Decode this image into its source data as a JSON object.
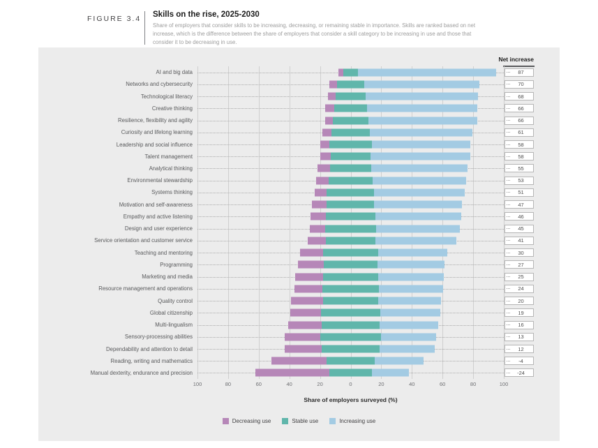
{
  "figure": {
    "label": "FIGURE 3.4",
    "title": "Skills on the rise, 2025-2030",
    "description": "Share of employers that consider skills to be increasing, decreasing, or remaining stable in importance. Skills are ranked based on net increase, which is the difference between the share of employers that consider a skill category to be increasing in use and those that consider it to be decreasing in use."
  },
  "net_increase_label": "Net increase",
  "axis": {
    "title": "Share of employers surveyed (%)",
    "tick_labels": [
      "100",
      "80",
      "60",
      "40",
      "20",
      "0",
      "20",
      "40",
      "60",
      "80",
      "100"
    ],
    "max_each_side": 100,
    "grid": true
  },
  "colors": {
    "decreasing": "#b687b8",
    "stable": "#60b6ab",
    "increasing": "#a3cbe3",
    "panel_background": "#ececec",
    "gridline": "#cfcfcf"
  },
  "legend": [
    {
      "label": "Decreasing use",
      "color": "#b687b8"
    },
    {
      "label": "Stable use",
      "color": "#60b6ab"
    },
    {
      "label": "Increasing use",
      "color": "#a3cbe3"
    }
  ],
  "chart_data": {
    "type": "bar",
    "subtype": "diverging-stacked-horizontal",
    "title": "Skills on the rise, 2025-2030",
    "xlabel": "Share of employers surveyed (%)",
    "xlim_left": 100,
    "xlim_right": 100,
    "alignment": "stable segment centered on zero",
    "legend_position": "bottom",
    "categories": [
      "AI and big data",
      "Networks and cybersecurity",
      "Technological literacy",
      "Creative thinking",
      "Resilience, flexibility and agility",
      "Curiosity and lifelong learning",
      "Leadership and social influence",
      "Talent management",
      "Analytical thinking",
      "Environmental stewardship",
      "Systems thinking",
      "Motivation and self-awareness",
      "Empathy and active listening",
      "Design and user experience",
      "Service orientation and customer service",
      "Teaching and mentoring",
      "Programming",
      "Marketing and media",
      "Resource management and operations",
      "Quality control",
      "Global citizenship",
      "Multi-lingualism",
      "Sensory-processing abilities",
      "Dependability and attention to detail",
      "Reading, writing and mathematics",
      "Manual dexterity, endurance and precision"
    ],
    "series": [
      {
        "name": "Decreasing use",
        "color": "#b687b8",
        "values": [
          3,
          5,
          5,
          6,
          5,
          6,
          6,
          7,
          8,
          8,
          8,
          10,
          10,
          10,
          12,
          15,
          17,
          18,
          18,
          21,
          20,
          22,
          23,
          24,
          36,
          48
        ]
      },
      {
        "name": "Stable use",
        "color": "#60b6ab",
        "values": [
          10,
          18,
          20,
          21,
          23,
          25,
          28,
          26,
          27,
          29,
          31,
          31,
          32,
          33,
          32,
          36,
          35,
          36,
          37,
          36,
          39,
          38,
          40,
          38,
          31,
          28
        ]
      },
      {
        "name": "Increasing use",
        "color": "#a3cbe3",
        "values": [
          90,
          75,
          73,
          72,
          71,
          67,
          64,
          65,
          63,
          61,
          59,
          57,
          56,
          55,
          53,
          45,
          44,
          43,
          42,
          41,
          39,
          38,
          36,
          36,
          32,
          24
        ]
      }
    ],
    "net_increase": [
      87,
      70,
      68,
      66,
      66,
      61,
      58,
      58,
      55,
      53,
      51,
      47,
      46,
      45,
      41,
      30,
      27,
      25,
      24,
      20,
      19,
      16,
      13,
      12,
      -4,
      -24
    ],
    "note": "Segment values estimated from bar lengths; net increase values shown explicitly in the figure"
  }
}
